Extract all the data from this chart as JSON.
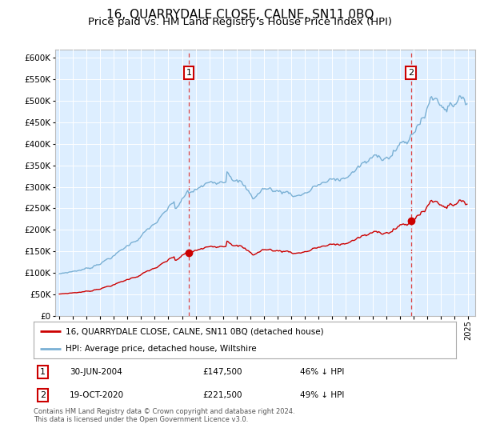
{
  "title": "16, QUARRYDALE CLOSE, CALNE, SN11 0BQ",
  "subtitle": "Price paid vs. HM Land Registry's House Price Index (HPI)",
  "title_fontsize": 11,
  "subtitle_fontsize": 9.5,
  "fig_bg_color": "#ffffff",
  "plot_bg_color": "#ddeeff",
  "legend_label_red": "16, QUARRYDALE CLOSE, CALNE, SN11 0BQ (detached house)",
  "legend_label_blue": "HPI: Average price, detached house, Wiltshire",
  "sale1_year": 2004.5,
  "sale1_price": 147500,
  "sale1_date": "30-JUN-2004",
  "sale1_pct": "46% ↓ HPI",
  "sale2_year": 2020.79,
  "sale2_price": 221500,
  "sale2_date": "19-OCT-2020",
  "sale2_pct": "49% ↓ HPI",
  "ylim": [
    0,
    620000
  ],
  "yticks": [
    0,
    50000,
    100000,
    150000,
    200000,
    250000,
    300000,
    350000,
    400000,
    450000,
    500000,
    550000,
    600000
  ],
  "xlim_start": 1994.7,
  "xlim_end": 2025.5,
  "footer": "Contains HM Land Registry data © Crown copyright and database right 2024.\nThis data is licensed under the Open Government Licence v3.0.",
  "red_color": "#cc0000",
  "blue_color": "#7ab0d4",
  "dashed_color": "#dd4444",
  "grid_color": "#ffffff",
  "box_edge_color": "#cc0000"
}
